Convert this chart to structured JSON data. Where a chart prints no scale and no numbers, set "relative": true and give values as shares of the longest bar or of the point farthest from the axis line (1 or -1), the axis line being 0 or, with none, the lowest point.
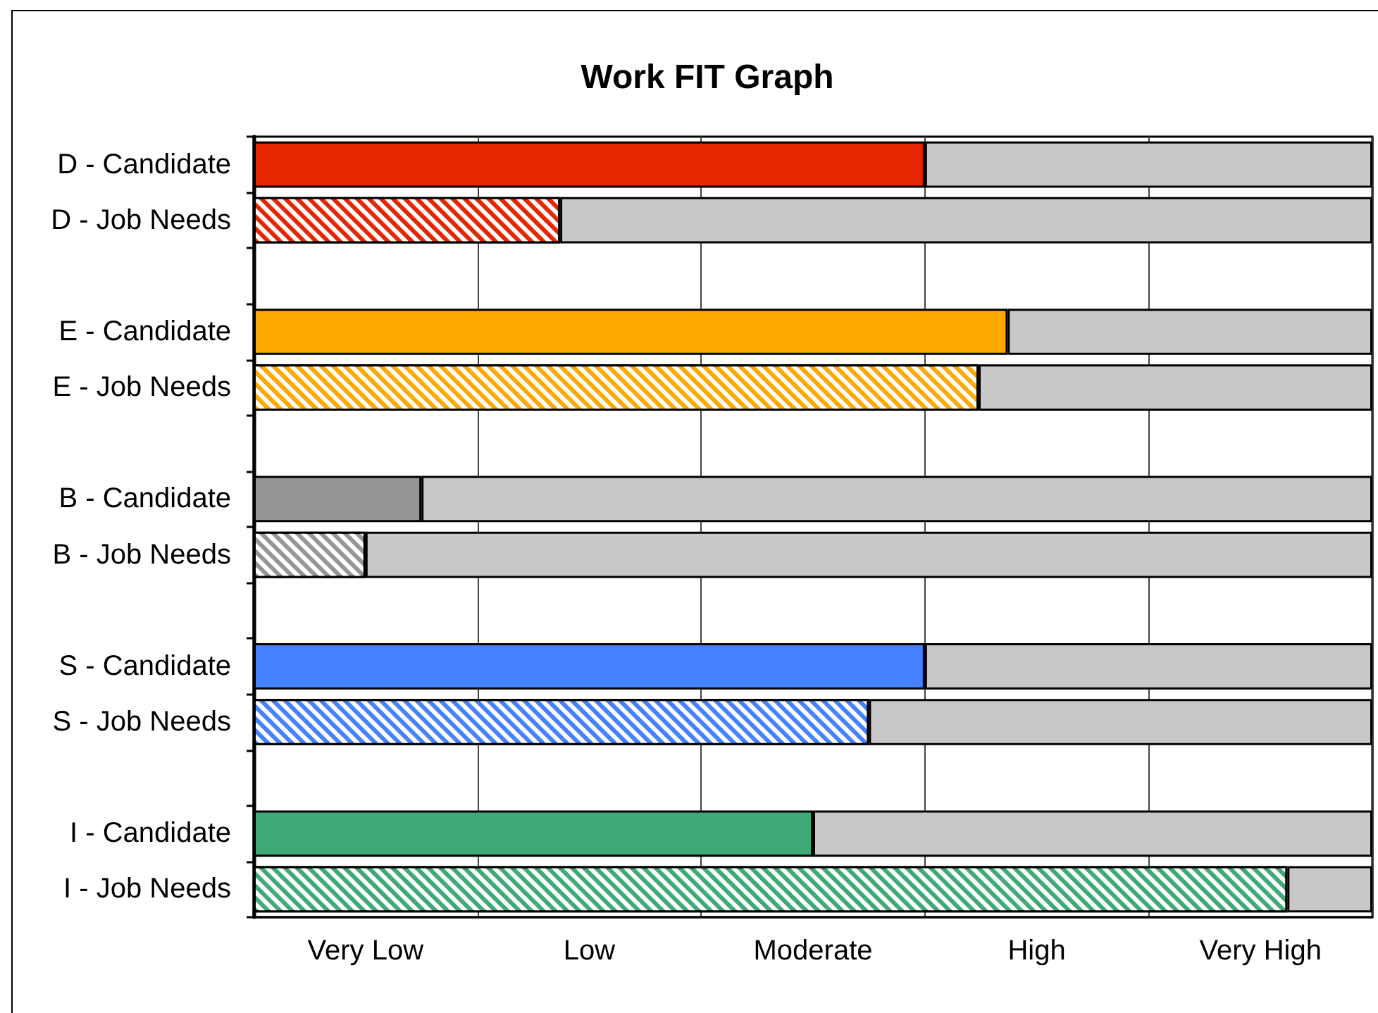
{
  "chart_data": {
    "type": "bar",
    "orientation": "horizontal",
    "stacked": true,
    "relative": true,
    "title": "Work FIT Graph",
    "categories": [
      "D - Candidate",
      "D - Job Needs",
      null,
      "E - Candidate",
      "E - Job Needs",
      null,
      "B - Candidate",
      "B - Job Needs",
      null,
      "S - Candidate",
      "S - Job Needs",
      null,
      "I - Candidate",
      "I - Job Needs"
    ],
    "series": [
      {
        "colors": [
          "#e52600",
          null,
          null,
          "#ffa800",
          null,
          null,
          "#969696",
          null,
          null,
          "#4682ff",
          null,
          null,
          "#3faa78",
          null
        ],
        "values": [
          0.6,
          null,
          null,
          0.674,
          null,
          null,
          0.15,
          null,
          null,
          0.6,
          null,
          null,
          0.5,
          null
        ]
      },
      {
        "colors": [
          null,
          "#e52600",
          null,
          null,
          "#ffa800",
          null,
          null,
          "#969696",
          null,
          null,
          "#4682ff",
          null,
          null,
          "#3faa78"
        ],
        "values": [
          null,
          0.274,
          null,
          null,
          0.648,
          null,
          null,
          0.1,
          null,
          null,
          0.55,
          null,
          null,
          0.924
        ]
      },
      {
        "color": "#c8c8c8",
        "values": [
          0.4,
          0.726,
          null,
          0.326,
          0.352,
          null,
          0.85,
          0.9,
          null,
          0.4,
          0.45,
          null,
          0.5,
          0.076
        ]
      }
    ],
    "annotations": [
      "Very Low",
      "Low",
      "Moderate",
      "High",
      "Very High"
    ],
    "grid": "x"
  }
}
